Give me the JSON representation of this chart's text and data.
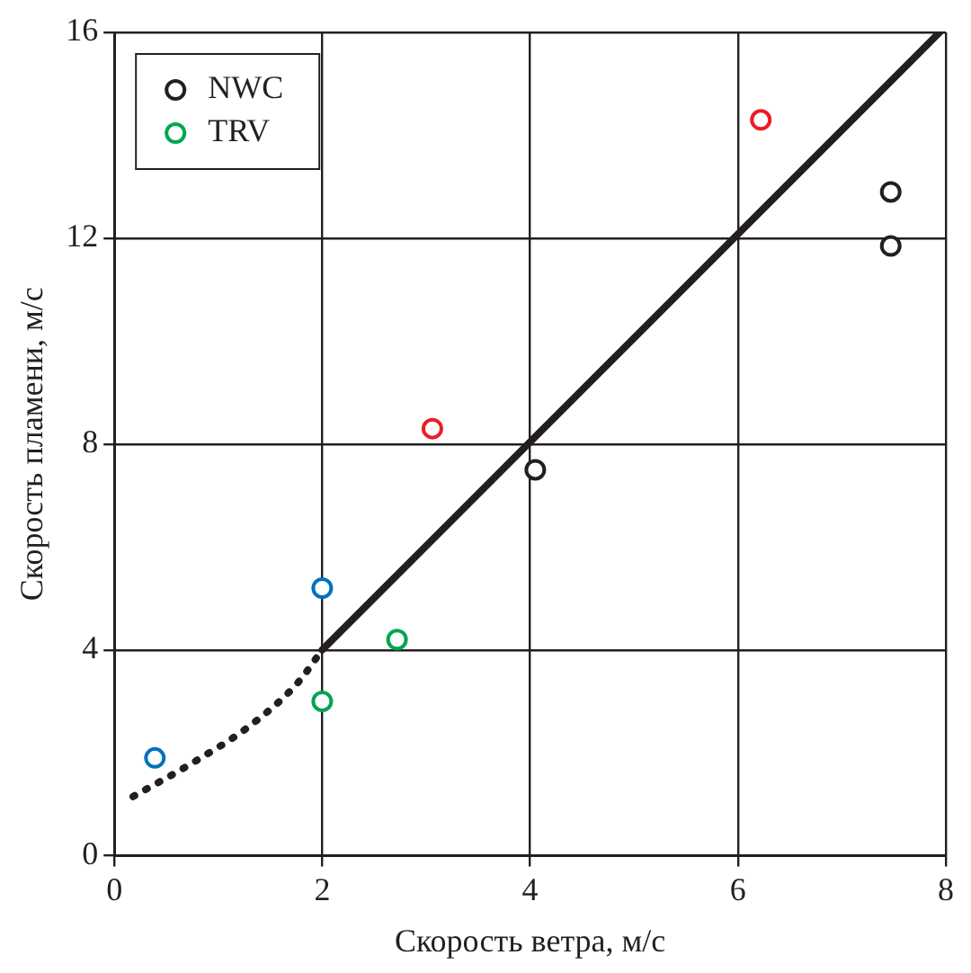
{
  "chart_data": {
    "type": "scatter",
    "xlabel": "Скорость ветра, м/с",
    "ylabel": "Скорость пламени, м/с",
    "xlim": [
      0,
      8
    ],
    "xticks": [
      0,
      2,
      4,
      6,
      8
    ],
    "ylim": [
      0,
      16
    ],
    "yticks": [
      0,
      4,
      8,
      12,
      16
    ],
    "grid": true,
    "legend": "top left",
    "marker": "circle",
    "series": [
      {
        "name": "NWC",
        "color": "#231f20",
        "x": [
          4.05,
          7.47,
          7.47
        ],
        "values": [
          7.5,
          12.9,
          11.85
        ]
      },
      {
        "color": "#ed1c24",
        "x": [
          3.06,
          6.22
        ],
        "values": [
          8.3,
          14.3
        ]
      },
      {
        "name": "TRV",
        "color": "#00a651",
        "x": [
          2.0,
          2.72
        ],
        "values": [
          3.0,
          4.2
        ]
      },
      {
        "color": "#0072bc",
        "x": [
          0.39,
          2.0
        ],
        "values": [
          1.9,
          5.2
        ]
      },
      {
        "type": "line",
        "color": "#231f20",
        "marker": "none",
        "line_style": "solid",
        "x": [
          2,
          7.94
        ],
        "values": [
          4,
          16
        ]
      },
      {
        "type": "line",
        "color": "#231f20",
        "marker": "none",
        "line_style": "dotted",
        "x": [
          0.18,
          0.79,
          1.32,
          1.76,
          2
        ],
        "values": [
          1.15,
          1.85,
          2.55,
          3.35,
          4
        ]
      }
    ]
  }
}
